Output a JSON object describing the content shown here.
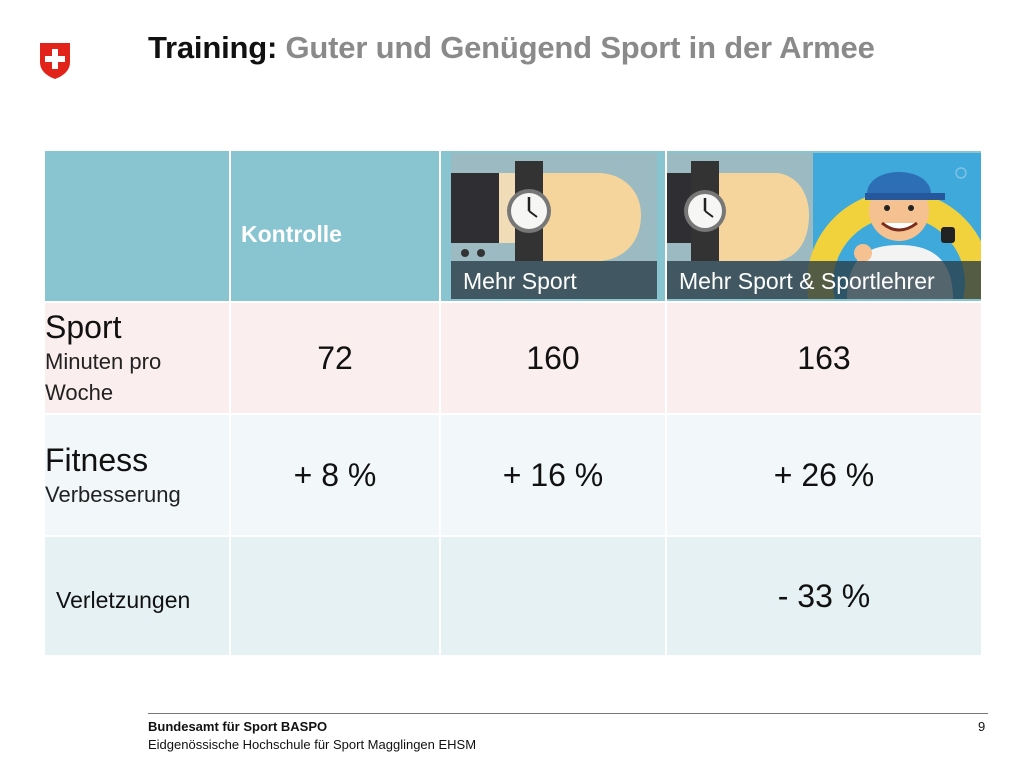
{
  "header": {
    "logo_icon": "swiss-cross-shield-icon",
    "title_strong": "Training:",
    "title_rest": "Guter und Genügend Sport in der Armee",
    "accent_red": "#e2231a",
    "title_grey": "#8a8a8a"
  },
  "table": {
    "columns": [
      {
        "label": ""
      },
      {
        "label": "Kontrolle"
      },
      {
        "label": "Mehr Sport",
        "image_icon": "wristwatch-icon"
      },
      {
        "label": "Mehr Sport & Sportlehrer",
        "image_icon": "wristwatch-and-coach-icon"
      }
    ],
    "rows": [
      {
        "title": "Sport",
        "subtitle": "Minuten pro Woche",
        "values": [
          "72",
          "160",
          "163"
        ]
      },
      {
        "title": "Fitness",
        "subtitle": "Verbesserung",
        "values": [
          "+ 8 %",
          "+ 16 %",
          "+ 26 %"
        ]
      },
      {
        "title": "Verletzungen",
        "values": [
          "",
          "",
          "- 33 %"
        ]
      }
    ],
    "colors": {
      "header_bg": "#89c5d0",
      "sport_row_bg": "#fbeeee",
      "fitness_row_bg": "#f2f8fa",
      "injury_row_bg": "#e6f1f3"
    }
  },
  "footer": {
    "org_line": "Bundesamt für Sport BASPO",
    "school_line": "Eidgenössische Hochschule für Sport Magglingen EHSM",
    "page_number": "9"
  }
}
